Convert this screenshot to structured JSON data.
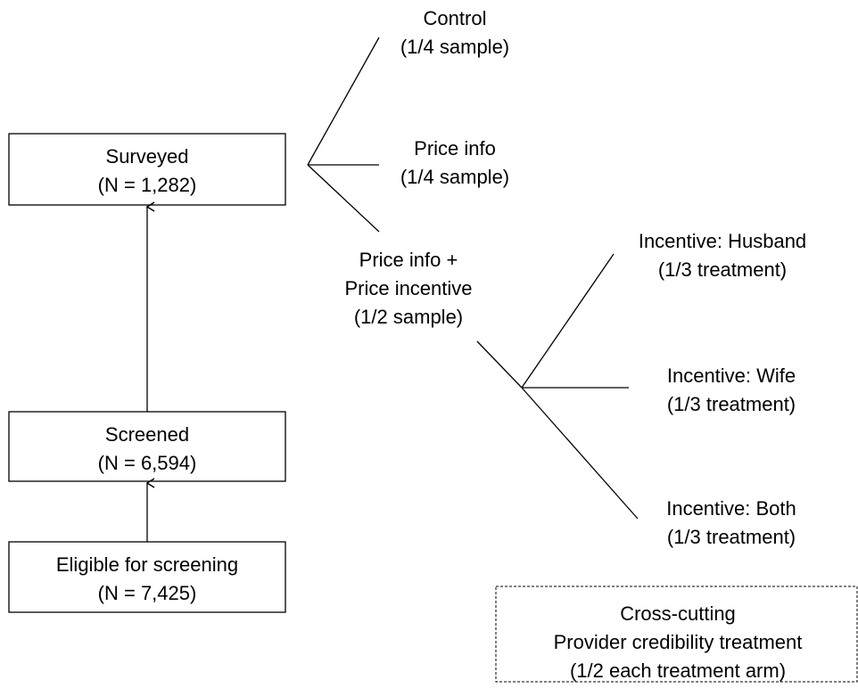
{
  "nodes": [
    {
      "id": "surveyed",
      "lines": [
        "Surveyed",
        "(N = 1,282)"
      ]
    },
    {
      "id": "screened",
      "lines": [
        "Screened",
        "(N = 6,594)"
      ]
    },
    {
      "id": "eligible",
      "lines": [
        "Eligible for screening",
        "(N = 7,425)"
      ]
    },
    {
      "id": "control",
      "lines": [
        "Control",
        "(1/4 sample)"
      ]
    },
    {
      "id": "price-info",
      "lines": [
        "Price info",
        "(1/4 sample)"
      ]
    },
    {
      "id": "price-incentive",
      "lines": [
        "Price info +",
        "Price incentive",
        "(1/2 sample)"
      ]
    },
    {
      "id": "husband",
      "lines": [
        "Incentive: Husband",
        "(1/3 treatment)"
      ]
    },
    {
      "id": "wife",
      "lines": [
        "Incentive: Wife",
        "(1/3 treatment)"
      ]
    },
    {
      "id": "both",
      "lines": [
        "Incentive: Both",
        "(1/3 treatment)"
      ]
    },
    {
      "id": "cross",
      "lines": [
        "Cross-cutting",
        "Provider credibility treatment",
        "(1/2 each treatment arm)"
      ]
    }
  ]
}
